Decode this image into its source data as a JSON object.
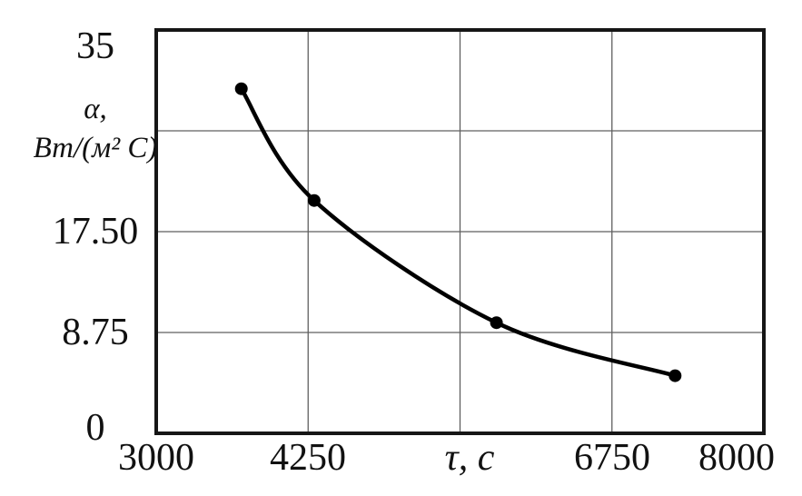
{
  "chart_data": {
    "type": "line",
    "title": "",
    "series": [
      {
        "name": "alpha-vs-tau-curve",
        "x": [
          3700,
          4300,
          5800,
          7270
        ],
        "y": [
          29.9,
          20.2,
          9.6,
          5.0
        ]
      }
    ],
    "xlabel": "τ, с",
    "ylabel": "α, Вт/(м² С)",
    "ylabel_line1": "α,",
    "ylabel_line2": "Вт/(м² С)",
    "xlim": [
      3000,
      8000
    ],
    "ylim": [
      0,
      35
    ],
    "grid": true,
    "legend": false,
    "x_gridlines": [
      4250,
      5500,
      6750
    ],
    "y_gridlines": [
      8.75,
      17.5,
      26.25
    ],
    "x_tick_labels": [
      {
        "value": 3000,
        "label": "3000"
      },
      {
        "value": 4250,
        "label": "4250"
      },
      {
        "value": 5500,
        "label": "τ, с",
        "is_axis_label": true
      },
      {
        "value": 6750,
        "label": "6750"
      },
      {
        "value": 8000,
        "label": "8000"
      }
    ],
    "y_tick_labels": [
      {
        "value": 35,
        "label": "35"
      },
      {
        "value": 17.5,
        "label": "17.50"
      },
      {
        "value": 8.75,
        "label": "8.75"
      },
      {
        "value": 0,
        "label": "0"
      }
    ],
    "line_width": 4.5,
    "marker": "circle",
    "marker_radius": 7,
    "colors": {
      "line": "#000000",
      "marker": "#000000",
      "grid": "#5f5f5f",
      "frame": "#161616",
      "background": "#ffffff",
      "text": "#111111"
    }
  }
}
